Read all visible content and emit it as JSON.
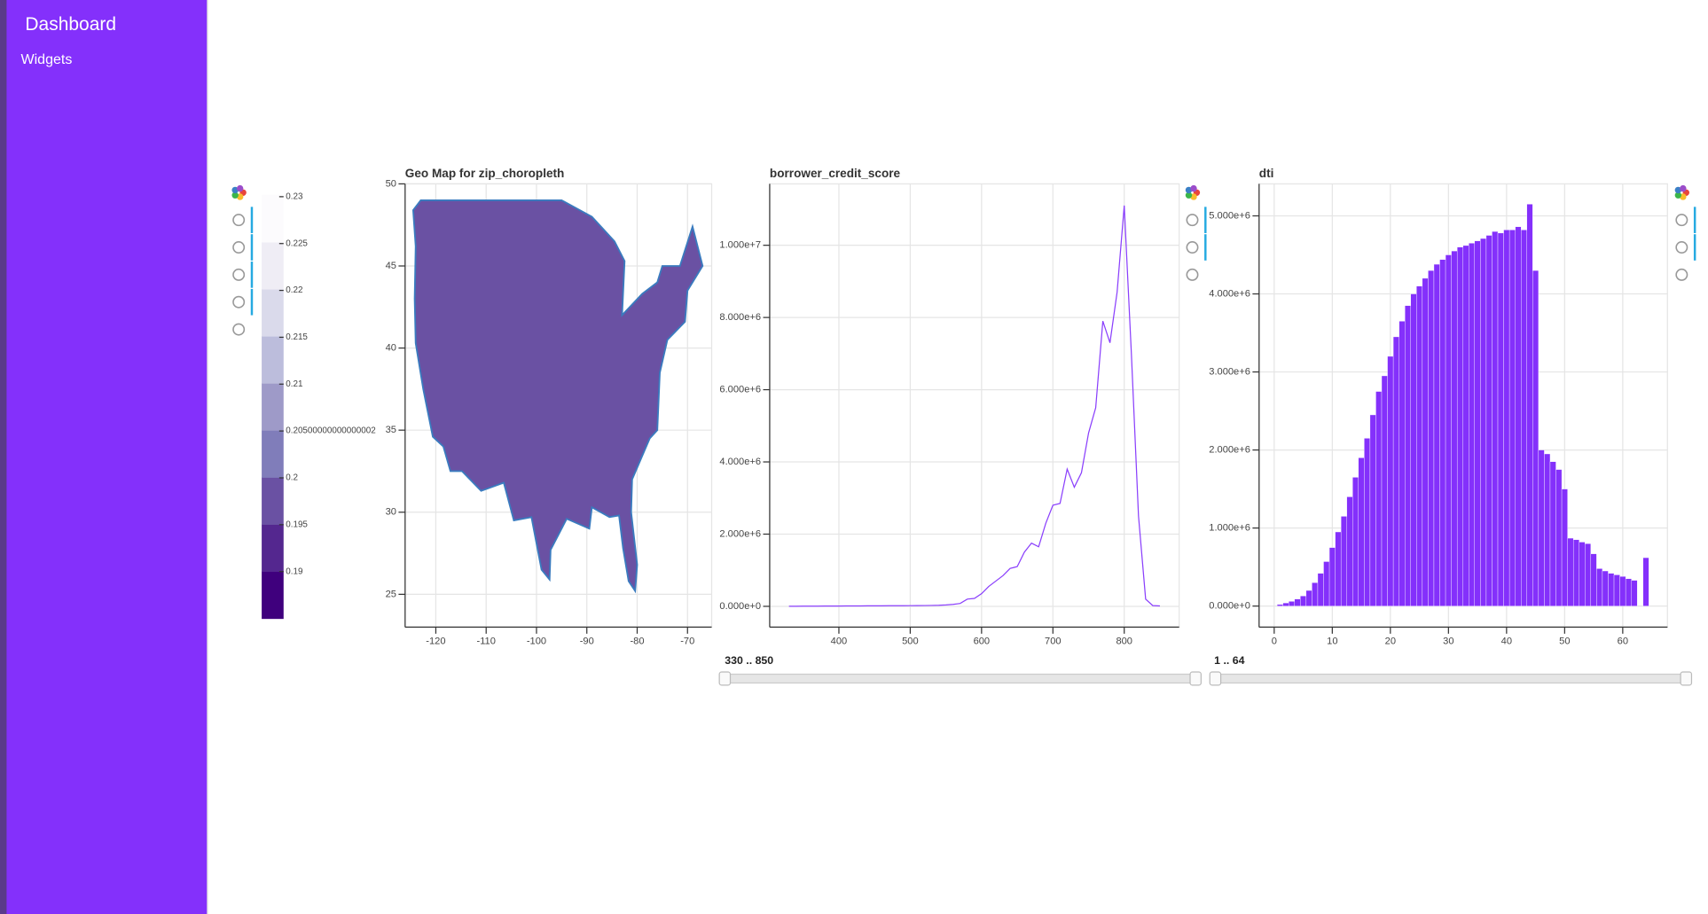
{
  "sidebar": {
    "title": "Dashboard",
    "items": [
      "Widgets"
    ]
  },
  "chart_data": [
    {
      "type": "map",
      "title": "Geo Map for zip_choropleth",
      "xlim": [
        -126.1,
        -65.2
      ],
      "ylim": [
        23,
        50
      ],
      "xticks": [
        -120,
        -110,
        -100,
        -90,
        -80,
        -70
      ],
      "yticks": [
        25,
        30,
        35,
        40,
        45,
        50
      ],
      "grid": true,
      "color": "#6a51a3",
      "line_color": "#3a7bbf",
      "colorbar": {
        "palette": [
          "#3f007d",
          "#54278f",
          "#6a51a3",
          "#807dba",
          "#9e9ac8",
          "#bcbddc",
          "#dadaeb",
          "#efedf5",
          "#fcfbfd"
        ],
        "clim": [
          0.185,
          0.2302
        ],
        "ticks": [
          0.19,
          0.195,
          0.2,
          0.20500000000000002,
          0.21,
          0.215,
          0.22,
          0.225,
          0.23
        ]
      }
    },
    {
      "type": "line",
      "title": "borrower_credit_score",
      "color": "#8a3ffc",
      "x": [
        330,
        340,
        350,
        360,
        370,
        380,
        390,
        400,
        410,
        420,
        430,
        440,
        450,
        460,
        470,
        480,
        490,
        500,
        510,
        520,
        530,
        540,
        550,
        560,
        570,
        580,
        590,
        600,
        610,
        620,
        630,
        640,
        650,
        660,
        670,
        680,
        690,
        700,
        710,
        720,
        730,
        740,
        750,
        760,
        770,
        780,
        790,
        800,
        810,
        820,
        830,
        840,
        850
      ],
      "values": [
        2000,
        3000,
        4000,
        5000,
        6000,
        7000,
        8000,
        9000,
        10000,
        11000,
        12000,
        13000,
        14000,
        15000,
        16000,
        17000,
        18000,
        19000,
        20000,
        22000,
        25000,
        30000,
        40000,
        55000,
        80000,
        200000,
        220000,
        350000,
        550000,
        700000,
        850000,
        1050000,
        1100000,
        1500000,
        1750000,
        1650000,
        2300000,
        2800000,
        2850000,
        3800000,
        3300000,
        3700000,
        4800000,
        5500000,
        7900000,
        7300000,
        8700000,
        11100000,
        7000000,
        2500000,
        200000,
        20000,
        10000
      ],
      "xlim": [
        303,
        877
      ],
      "ylim": [
        -576000,
        11700000
      ],
      "xticks": [
        400,
        500,
        600,
        700,
        800
      ],
      "yticks": [
        {
          "value": 0,
          "label": "0.000e+0"
        },
        {
          "value": 2000000,
          "label": "2.000e+6"
        },
        {
          "value": 4000000,
          "label": "4.000e+6"
        },
        {
          "value": 6000000,
          "label": "6.000e+6"
        },
        {
          "value": 8000000,
          "label": "8.000e+6"
        },
        {
          "value": 10000000,
          "label": "1.000e+7"
        }
      ],
      "grid": true
    },
    {
      "type": "histogram",
      "title": "dti",
      "color": "#8430fb",
      "bins": [
        0.5,
        1.5,
        2.5,
        3.5,
        4.5,
        5.5,
        6.5,
        7.5,
        8.5,
        9.5,
        10.5,
        11.5,
        12.5,
        13.5,
        14.5,
        15.5,
        16.5,
        17.5,
        18.5,
        19.5,
        20.5,
        21.5,
        22.5,
        23.5,
        24.5,
        25.5,
        26.5,
        27.5,
        28.5,
        29.5,
        30.5,
        31.5,
        32.5,
        33.5,
        34.5,
        35.5,
        36.5,
        37.5,
        38.5,
        39.5,
        40.5,
        41.5,
        42.5,
        43.5,
        44.5,
        45.5,
        46.5,
        47.5,
        48.5,
        49.5,
        50.5,
        51.5,
        52.5,
        53.5,
        54.5,
        55.5,
        56.5,
        57.5,
        58.5,
        59.5,
        60.5,
        61.5,
        62.5,
        63.5,
        64.5
      ],
      "values": [
        20000,
        40000,
        60000,
        90000,
        130000,
        200000,
        300000,
        420000,
        570000,
        750000,
        950000,
        1150000,
        1400000,
        1650000,
        1900000,
        2150000,
        2450000,
        2750000,
        2950000,
        3200000,
        3450000,
        3650000,
        3850000,
        4000000,
        4100000,
        4200000,
        4300000,
        4380000,
        4440000,
        4500000,
        4550000,
        4600000,
        4620000,
        4650000,
        4680000,
        4710000,
        4750000,
        4800000,
        4780000,
        4820000,
        4820000,
        4860000,
        4820000,
        5150000,
        4300000,
        2000000,
        1950000,
        1850000,
        1750000,
        1500000,
        870000,
        850000,
        820000,
        800000,
        670000,
        480000,
        450000,
        420000,
        400000,
        380000,
        350000,
        330000,
        0,
        620000
      ],
      "xlim": [
        -2.6,
        67.7
      ],
      "ylim": [
        -270000,
        5410000
      ],
      "xticks": [
        0,
        10,
        20,
        30,
        40,
        50,
        60
      ],
      "yticks": [
        {
          "value": 0,
          "label": "0.000e+0"
        },
        {
          "value": 1000000,
          "label": "1.000e+6"
        },
        {
          "value": 2000000,
          "label": "2.000e+6"
        },
        {
          "value": 3000000,
          "label": "3.000e+6"
        },
        {
          "value": 4000000,
          "label": "4.000e+6"
        },
        {
          "value": 5000000,
          "label": "5.000e+6"
        }
      ],
      "grid": true
    }
  ],
  "sliders": [
    {
      "label": "330 .. 850"
    },
    {
      "label": "1 .. 64"
    }
  ]
}
